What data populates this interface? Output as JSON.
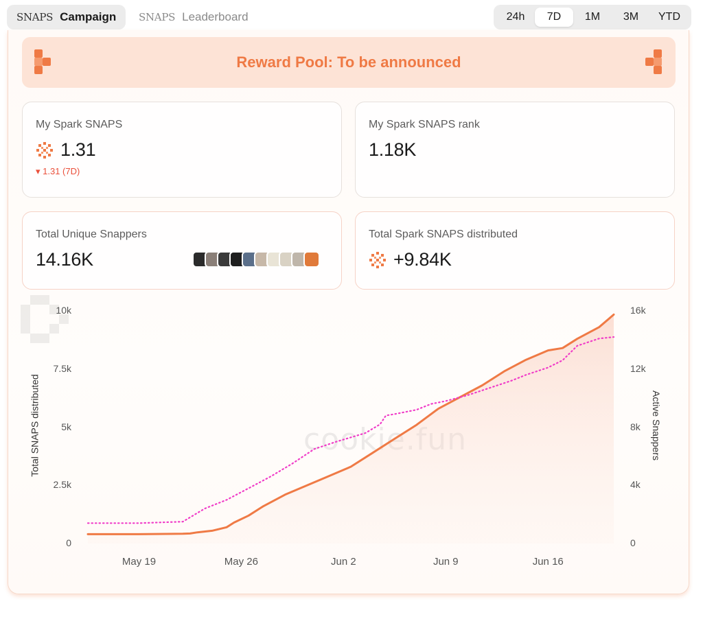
{
  "tabs": [
    {
      "brand": "SNAPS",
      "label": "Campaign",
      "active": true
    },
    {
      "brand": "SNAPS",
      "label": "Leaderboard",
      "active": false
    }
  ],
  "range": {
    "options": [
      "24h",
      "7D",
      "1M",
      "3M",
      "YTD"
    ],
    "selected": "7D"
  },
  "banner": {
    "text": "Reward Pool: To be announced",
    "icon": "cookie-logo-icon",
    "color": "#ef7a45"
  },
  "stats": {
    "my_snaps": {
      "label": "My Spark SNAPS",
      "value": "1.31",
      "delta": "▾ 1.31 (7D)",
      "icon": "spark-icon"
    },
    "my_rank": {
      "label": "My Spark SNAPS rank",
      "value": "1.18K"
    },
    "snappers": {
      "label": "Total Unique Snappers",
      "value": "14.16K",
      "avatar_count": 10
    },
    "distributed": {
      "label": "Total Spark SNAPS distributed",
      "value": "+9.84K",
      "icon": "spark-icon"
    }
  },
  "watermark": "cookie.fun",
  "colors": {
    "accent": "#ef7a45",
    "secondary": "#f03cc8",
    "negative": "#ea4f3a"
  },
  "chart_data": {
    "type": "line",
    "xlabel": "",
    "ylabel_left": "Total SNAPS distributed",
    "ylabel_right": "Active Snappers",
    "x_ticks": [
      "May 19",
      "May 26",
      "Jun 2",
      "Jun 9",
      "Jun 16"
    ],
    "y_left_ticks": [
      "0",
      "2.5k",
      "5k",
      "7.5k",
      "10k"
    ],
    "y_right_ticks": [
      "0",
      "4k",
      "8k",
      "12k",
      "16k"
    ],
    "ylim_left": [
      0,
      10000
    ],
    "ylim_right": [
      0,
      16000
    ],
    "x_range_days": [
      -3.5,
      32.5
    ],
    "x_tick_days": [
      0,
      7,
      14,
      21,
      28
    ],
    "series": [
      {
        "name": "Total SNAPS distributed",
        "axis": "left",
        "color": "#ef7a45",
        "style": "solid",
        "points": [
          [
            -3.5,
            400
          ],
          [
            0,
            400
          ],
          [
            3,
            420
          ],
          [
            3.5,
            430
          ],
          [
            4,
            480
          ],
          [
            5,
            550
          ],
          [
            6,
            700
          ],
          [
            6.5,
            900
          ],
          [
            7.5,
            1200
          ],
          [
            8.5,
            1600
          ],
          [
            10,
            2100
          ],
          [
            11.5,
            2500
          ],
          [
            13,
            2900
          ],
          [
            14.5,
            3300
          ],
          [
            16,
            3900
          ],
          [
            17.5,
            4500
          ],
          [
            19,
            5100
          ],
          [
            20.5,
            5800
          ],
          [
            22,
            6300
          ],
          [
            23.5,
            6800
          ],
          [
            25,
            7400
          ],
          [
            26.5,
            7900
          ],
          [
            28,
            8300
          ],
          [
            29,
            8400
          ],
          [
            30,
            8800
          ],
          [
            31.5,
            9300
          ],
          [
            32.5,
            9840
          ]
        ]
      },
      {
        "name": "Active Snappers",
        "axis": "right",
        "color": "#f03cc8",
        "style": "dotted",
        "points": [
          [
            -3.5,
            1400
          ],
          [
            0,
            1400
          ],
          [
            3,
            1500
          ],
          [
            4.5,
            2400
          ],
          [
            6,
            3000
          ],
          [
            7.5,
            3800
          ],
          [
            9,
            4600
          ],
          [
            10.5,
            5500
          ],
          [
            12,
            6500
          ],
          [
            13.5,
            7000
          ],
          [
            15.5,
            7600
          ],
          [
            16.5,
            8200
          ],
          [
            16.9,
            8800
          ],
          [
            17.5,
            8900
          ],
          [
            19,
            9200
          ],
          [
            20,
            9600
          ],
          [
            21,
            9800
          ],
          [
            22.5,
            10200
          ],
          [
            24,
            10700
          ],
          [
            25.5,
            11200
          ],
          [
            26.5,
            11600
          ],
          [
            28,
            12100
          ],
          [
            29,
            12600
          ],
          [
            30,
            13600
          ],
          [
            31.5,
            14100
          ],
          [
            32.5,
            14200
          ]
        ]
      }
    ]
  }
}
